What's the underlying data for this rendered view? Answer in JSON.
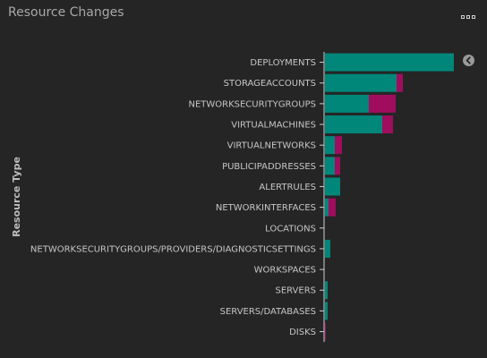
{
  "panel": {
    "title": "Resource Changes",
    "menu_icon": "more-icon",
    "collapse_icon": "chevron-left-icon"
  },
  "colors": {
    "series_primary": "#00877a",
    "series_secondary": "#a00d5e",
    "background": "#252525",
    "axis": "#cfcfcf"
  },
  "chart_data": {
    "type": "bar",
    "orientation": "horizontal",
    "stacked": true,
    "title": "",
    "xlabel": "",
    "ylabel": "Resource Type",
    "categories": [
      "DEPLOYMENTS",
      "STORAGEACCOUNTS",
      "NETWORKSECURITYGROUPS",
      "VIRTUALMACHINES",
      "VIRTUALNETWORKS",
      "PUBLICIPADDRESSES",
      "ALERTRULES",
      "NETWORKINTERFACES",
      "LOCATIONS",
      "NETWORKSECURITYGROUPS/PROVIDERS/DIAGNOSTICSETTINGS",
      "WORKSPACES",
      "SERVERS",
      "SERVERS/DATABASES",
      "DISKS"
    ],
    "series": [
      {
        "values": [
          144,
          80,
          49,
          64,
          11,
          11,
          17,
          4,
          0,
          6,
          0,
          3,
          3,
          0
        ]
      },
      {
        "values": [
          0,
          7,
          30,
          12,
          8,
          6,
          0,
          8,
          0,
          0,
          0,
          0,
          0,
          1
        ]
      }
    ],
    "xlim": [
      0,
      145
    ],
    "grid": false,
    "legend": "none"
  }
}
